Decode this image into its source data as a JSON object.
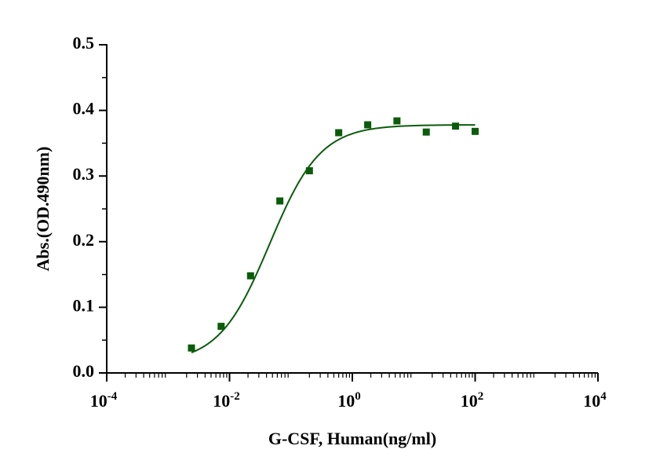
{
  "chart_data": {
    "type": "scatter",
    "title": "",
    "xlabel": "G-CSF, Human(ng/ml)",
    "ylabel": "Abs.(OD.490nm)",
    "x_scale": "log10",
    "xlim": [
      0.0001,
      10000
    ],
    "ylim": [
      0,
      0.5
    ],
    "grid": false,
    "legend": "none",
    "x_ticks": [
      {
        "value": 0.0001,
        "base": "10",
        "exp": "-4"
      },
      {
        "value": 0.01,
        "base": "10",
        "exp": "-2"
      },
      {
        "value": 1,
        "base": "10",
        "exp": "0"
      },
      {
        "value": 100,
        "base": "10",
        "exp": "2"
      },
      {
        "value": 10000,
        "base": "10",
        "exp": "4"
      }
    ],
    "y_ticks": [
      {
        "value": 0.0,
        "label": "0.0"
      },
      {
        "value": 0.1,
        "label": "0.1"
      },
      {
        "value": 0.2,
        "label": "0.2"
      },
      {
        "value": 0.3,
        "label": "0.3"
      },
      {
        "value": 0.4,
        "label": "0.4"
      },
      {
        "value": 0.5,
        "label": "0.5"
      }
    ],
    "series": [
      {
        "name": "G-CSF, Human",
        "color": "#0a5c0a",
        "marker": "square",
        "x": [
          0.0024,
          0.0073,
          0.022,
          0.066,
          0.2,
          0.6,
          1.78,
          5.33,
          16,
          48,
          100
        ],
        "y": [
          0.038,
          0.071,
          0.148,
          0.262,
          0.308,
          0.366,
          0.378,
          0.384,
          0.367,
          0.376,
          0.368
        ]
      }
    ],
    "fit": {
      "model": "4PL",
      "color": "#0a5c0a",
      "bottom": 0.015,
      "top": 0.378,
      "ec50": 0.045,
      "hill": 1.05,
      "x_range": [
        0.0024,
        100
      ]
    }
  }
}
